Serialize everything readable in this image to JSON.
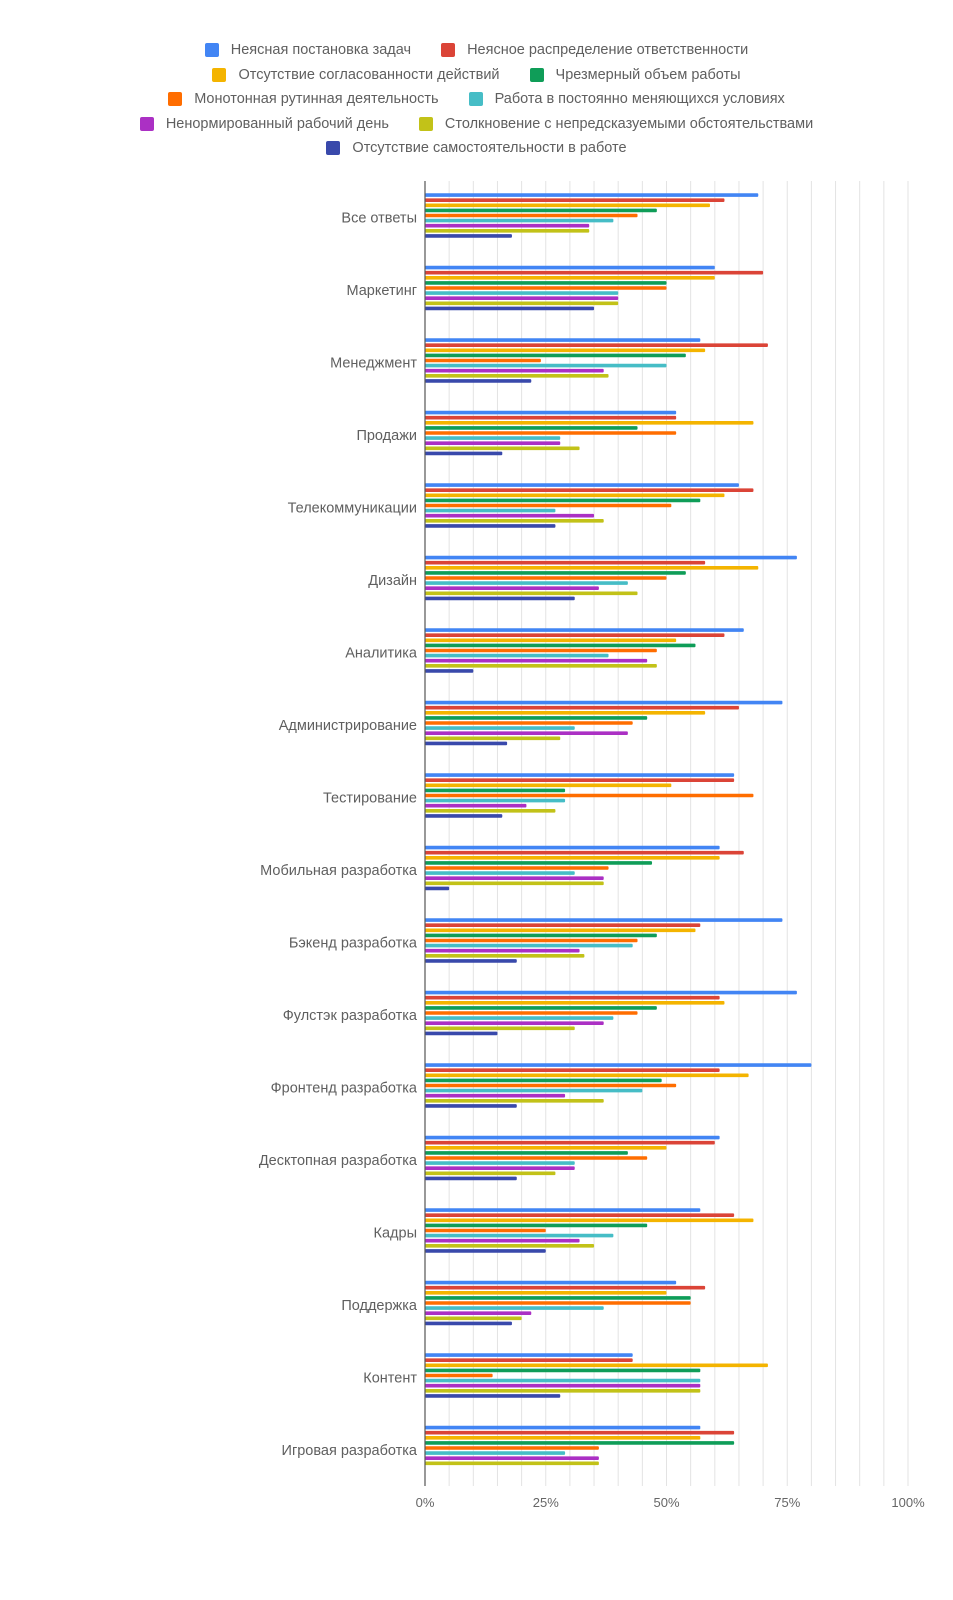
{
  "chart_data": {
    "type": "bar",
    "orientation": "horizontal",
    "title": "",
    "xlabel": "",
    "ylabel": "",
    "xlim": [
      0,
      100
    ],
    "grid": true,
    "legend_position": "top",
    "x_ticks": [
      "0%",
      "25%",
      "50%",
      "75%",
      "100%"
    ],
    "categories": [
      "Все ответы",
      "Маркетинг",
      "Менеджмент",
      "Продажи",
      "Телекоммуникации",
      "Дизайн",
      "Аналитика",
      "Администрирование",
      "Тестирование",
      "Мобильная разработка",
      "Бэкенд разработка",
      "Фулстэк разработка",
      "Фронтенд разработка",
      "Десктопная разработка",
      "Кадры",
      "Поддержка",
      "Контент",
      "Игровая разработка"
    ],
    "series": [
      {
        "name": "Неясная постановка задач",
        "color": "#4285f4",
        "values": [
          69,
          60,
          57,
          52,
          65,
          77,
          66,
          74,
          64,
          61,
          74,
          77,
          80,
          61,
          57,
          52,
          43,
          57
        ]
      },
      {
        "name": "Неясное распределение ответственности",
        "color": "#db4437",
        "values": [
          62,
          70,
          71,
          52,
          68,
          58,
          62,
          65,
          64,
          66,
          57,
          61,
          61,
          60,
          64,
          58,
          43,
          64
        ]
      },
      {
        "name": "Отсутствие согласованности действий",
        "color": "#f4b400",
        "values": [
          59,
          60,
          58,
          68,
          62,
          69,
          52,
          58,
          51,
          61,
          56,
          62,
          67,
          50,
          68,
          50,
          71,
          57
        ]
      },
      {
        "name": "Чрезмерный объем работы",
        "color": "#0f9d58",
        "values": [
          48,
          50,
          54,
          44,
          57,
          54,
          56,
          46,
          29,
          47,
          48,
          48,
          49,
          42,
          46,
          55,
          57,
          64
        ]
      },
      {
        "name": "Монотонная рутинная деятельность",
        "color": "#ff6d00",
        "values": [
          44,
          50,
          24,
          52,
          51,
          50,
          48,
          43,
          68,
          38,
          44,
          44,
          52,
          46,
          25,
          55,
          14,
          36
        ]
      },
      {
        "name": "Работа в постоянно меняющихся условиях",
        "color": "#46bdc6",
        "values": [
          39,
          40,
          50,
          28,
          27,
          42,
          38,
          31,
          29,
          31,
          43,
          39,
          45,
          31,
          39,
          37,
          57,
          29
        ]
      },
      {
        "name": "Ненормированный рабочий день",
        "color": "#ab30c4",
        "values": [
          34,
          40,
          37,
          28,
          35,
          36,
          46,
          42,
          21,
          37,
          32,
          37,
          29,
          31,
          32,
          22,
          57,
          36
        ]
      },
      {
        "name": "Столкновение с непредсказуемыми обстоятельствами",
        "color": "#c2c218",
        "values": [
          34,
          40,
          38,
          32,
          37,
          44,
          48,
          28,
          27,
          37,
          33,
          31,
          37,
          27,
          35,
          20,
          57,
          36
        ]
      },
      {
        "name": "Отсутствие самостоятельности в работе",
        "color": "#3949ab",
        "values": [
          18,
          35,
          22,
          16,
          27,
          31,
          10,
          17,
          16,
          5,
          19,
          15,
          19,
          19,
          25,
          18,
          28,
          0
        ]
      }
    ]
  }
}
